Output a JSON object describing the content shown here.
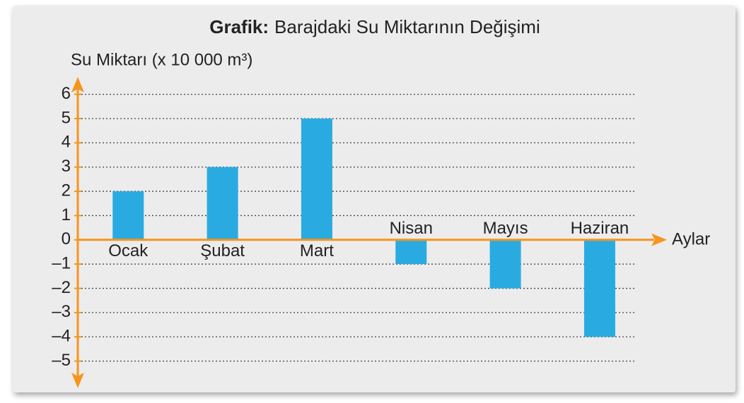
{
  "chart_data": {
    "type": "bar",
    "title_label": "Grafik:",
    "title": "Barajdaki Su Miktarının Değişimi",
    "y_label": "Su Miktarı (x 10 000 m³)",
    "x_label": "Aylar",
    "categories": [
      "Ocak",
      "Şubat",
      "Mart",
      "Nisan",
      "Mayıs",
      "Haziran"
    ],
    "values": [
      2,
      3,
      5,
      -1,
      -2,
      -4
    ],
    "color": "#29abe2",
    "ylim": [
      -6,
      6.6
    ],
    "yticks": [
      {
        "value": -5,
        "label": "–5"
      },
      {
        "value": -4,
        "label": "–4"
      },
      {
        "value": -3,
        "label": "–3"
      },
      {
        "value": -2,
        "label": "–2"
      },
      {
        "value": -1,
        "label": "–1"
      },
      0,
      1,
      2,
      3,
      4,
      5,
      6
    ],
    "grid": true
  }
}
